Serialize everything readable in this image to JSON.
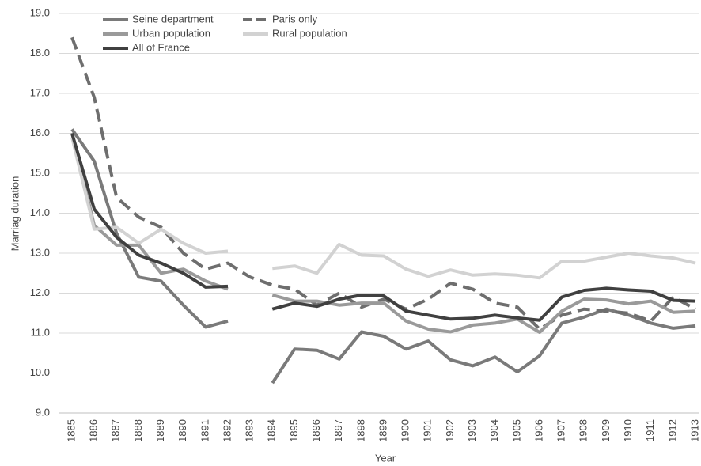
{
  "chart_data": {
    "type": "line",
    "x_label": "Year",
    "y_label": "Marriag duration",
    "categories": [
      "1885",
      "1886",
      "1887",
      "1888",
      "1889",
      "1890",
      "1891",
      "1892",
      "1893",
      "1894",
      "1895",
      "1896",
      "1897",
      "1898",
      "1899",
      "1900",
      "1901",
      "1902",
      "1903",
      "1904",
      "1905",
      "1906",
      "1907",
      "1908",
      "1909",
      "1910",
      "1911",
      "1912",
      "1913"
    ],
    "series": [
      {
        "name": "Seine department",
        "color": "#7a7a7a",
        "values": [
          16.1,
          15.3,
          13.5,
          12.4,
          12.3,
          11.7,
          11.15,
          11.3,
          null,
          9.75,
          10.6,
          10.57,
          10.35,
          11.03,
          10.92,
          10.6,
          10.8,
          10.33,
          10.18,
          10.4,
          10.03,
          10.43,
          11.25,
          11.4,
          11.6,
          11.45,
          11.25,
          11.12,
          11.18
        ]
      },
      {
        "name": "Paris only",
        "color": "#6e6e6e",
        "dashed": true,
        "values": [
          18.4,
          16.9,
          14.4,
          13.9,
          13.65,
          13.0,
          12.6,
          12.75,
          12.4,
          12.2,
          12.1,
          11.7,
          12.0,
          11.65,
          11.85,
          11.6,
          11.85,
          12.25,
          12.1,
          11.75,
          11.65,
          11.1,
          11.45,
          11.6,
          11.55,
          11.5,
          11.3,
          11.9,
          11.6
        ]
      },
      {
        "name": "Urban population",
        "color": "#9a9a9a",
        "values": [
          16.0,
          13.7,
          13.2,
          13.2,
          12.5,
          12.6,
          12.3,
          12.1,
          null,
          11.95,
          11.8,
          11.8,
          11.7,
          11.75,
          11.75,
          11.3,
          11.1,
          11.03,
          11.2,
          11.25,
          11.35,
          11.02,
          11.55,
          11.85,
          11.83,
          11.73,
          11.8,
          11.52,
          11.55
        ]
      },
      {
        "name": "Rural population",
        "color": "#d2d2d2",
        "values": [
          15.9,
          13.6,
          13.65,
          13.25,
          13.6,
          13.25,
          13.0,
          13.05,
          null,
          12.62,
          12.68,
          12.5,
          13.22,
          12.95,
          12.93,
          12.6,
          12.42,
          12.58,
          12.45,
          12.48,
          12.45,
          12.38,
          12.8,
          12.8,
          12.9,
          13.0,
          12.93,
          12.88,
          12.75
        ]
      },
      {
        "name": "All of France",
        "color": "#404040",
        "values": [
          16.0,
          14.1,
          13.4,
          12.95,
          12.75,
          12.5,
          12.15,
          12.17,
          null,
          11.6,
          11.75,
          11.67,
          11.85,
          11.95,
          11.93,
          11.55,
          11.45,
          11.35,
          11.37,
          11.45,
          11.38,
          11.32,
          11.9,
          12.07,
          12.12,
          12.08,
          12.05,
          11.82,
          11.8
        ]
      }
    ],
    "ylim": [
      9,
      19
    ],
    "yticks": [
      {
        "value": 9,
        "label": "9.0"
      },
      {
        "value": 10,
        "label": "10.0"
      },
      {
        "value": 11,
        "label": "11.0"
      },
      {
        "value": 12,
        "label": "12.0"
      },
      {
        "value": 13,
        "label": "13.0"
      },
      {
        "value": 14,
        "label": "14.0"
      },
      {
        "value": 15,
        "label": "15.0"
      },
      {
        "value": 16,
        "label": "16.0"
      },
      {
        "value": 17,
        "label": "17.0"
      },
      {
        "value": 18,
        "label": "18.0"
      },
      {
        "value": 19,
        "label": "19.0"
      }
    ],
    "grid": true,
    "legend": "top-left"
  }
}
